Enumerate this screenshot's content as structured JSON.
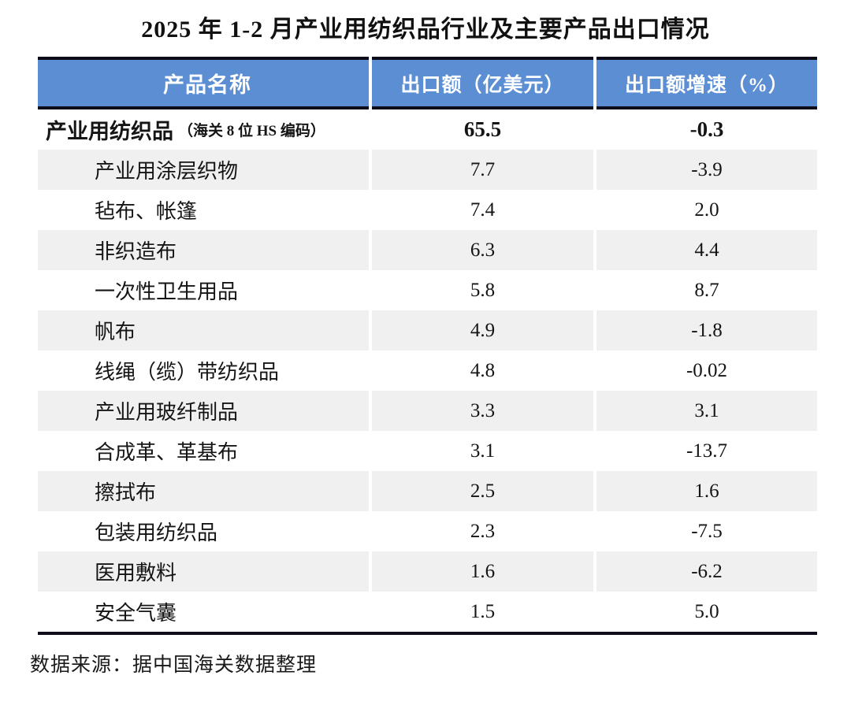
{
  "title": "2025 年 1-2 月产业用纺织品行业及主要产品出口情况",
  "table": {
    "columns": [
      "产品名称",
      "出口额（亿美元）",
      "出口额增速（%）"
    ],
    "rows": [
      {
        "name": "产业用纺织品",
        "name_note": "（海关 8 位 HS 编码）",
        "export_value": "65.5",
        "growth": "-0.3",
        "bold": true,
        "indent": false
      },
      {
        "name": "产业用涂层织物",
        "export_value": "7.7",
        "growth": "-3.9",
        "bold": false,
        "indent": true
      },
      {
        "name": "毡布、帐篷",
        "export_value": "7.4",
        "growth": "2.0",
        "bold": false,
        "indent": true
      },
      {
        "name": "非织造布",
        "export_value": "6.3",
        "growth": "4.4",
        "bold": false,
        "indent": true
      },
      {
        "name": "一次性卫生用品",
        "export_value": "5.8",
        "growth": "8.7",
        "bold": false,
        "indent": true
      },
      {
        "name": "帆布",
        "export_value": "4.9",
        "growth": "-1.8",
        "bold": false,
        "indent": true
      },
      {
        "name": "线绳（缆）带纺织品",
        "export_value": "4.8",
        "growth": "-0.02",
        "bold": false,
        "indent": true
      },
      {
        "name": "产业用玻纤制品",
        "export_value": "3.3",
        "growth": "3.1",
        "bold": false,
        "indent": true
      },
      {
        "name": "合成革、革基布",
        "export_value": "3.1",
        "growth": "-13.7",
        "bold": false,
        "indent": true
      },
      {
        "name": "擦拭布",
        "export_value": "2.5",
        "growth": "1.6",
        "bold": false,
        "indent": true
      },
      {
        "name": "包装用纺织品",
        "export_value": "2.3",
        "growth": "-7.5",
        "bold": false,
        "indent": true
      },
      {
        "name": "医用敷料",
        "export_value": "1.6",
        "growth": "-6.2",
        "bold": false,
        "indent": true
      },
      {
        "name": "安全气囊",
        "export_value": "1.5",
        "growth": "5.0",
        "bold": false,
        "indent": true
      }
    ]
  },
  "footer": {
    "source": "数据来源：据中国海关数据整理"
  },
  "colors": {
    "header_bg": "#5B8ED3",
    "header_text": "#FFFFFF",
    "row_alt_bg": "#F0F0F0",
    "border_dark": "#0C0C1A",
    "text": "#151515"
  },
  "chart_data": {
    "type": "table",
    "title": "2025 年 1-2 月产业用纺织品行业及主要产品出口情况",
    "columns": [
      "产品名称",
      "出口额（亿美元）",
      "出口额增速（%）"
    ],
    "rows": [
      [
        "产业用纺织品（海关 8 位 HS 编码）",
        65.5,
        -0.3
      ],
      [
        "产业用涂层织物",
        7.7,
        -3.9
      ],
      [
        "毡布、帐篷",
        7.4,
        2.0
      ],
      [
        "非织造布",
        6.3,
        4.4
      ],
      [
        "一次性卫生用品",
        5.8,
        8.7
      ],
      [
        "帆布",
        4.9,
        -1.8
      ],
      [
        "线绳（缆）带纺织品",
        4.8,
        -0.02
      ],
      [
        "产业用玻纤制品",
        3.3,
        3.1
      ],
      [
        "合成革、革基布",
        3.1,
        -13.7
      ],
      [
        "擦拭布",
        2.5,
        1.6
      ],
      [
        "包装用纺织品",
        2.3,
        -7.5
      ],
      [
        "医用敷料",
        1.6,
        -6.2
      ],
      [
        "安全气囊",
        1.5,
        5.0
      ]
    ],
    "source": "数据来源：据中国海关数据整理"
  }
}
